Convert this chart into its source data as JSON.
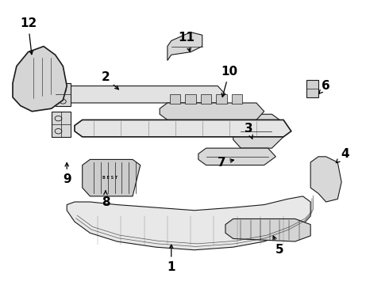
{
  "background_color": "#ffffff",
  "line_color": "#1a1a1a",
  "label_color": "#000000",
  "label_fontsize": 11,
  "label_fontweight": "bold",
  "figsize": [
    4.9,
    3.6
  ],
  "dpi": 100,
  "label_positions": {
    "1": [
      0.44,
      0.06,
      0.44,
      0.15
    ],
    "2": [
      0.27,
      0.73,
      0.31,
      0.68
    ],
    "3": [
      0.64,
      0.55,
      0.65,
      0.51
    ],
    "4": [
      0.89,
      0.46,
      0.86,
      0.42
    ],
    "5": [
      0.72,
      0.12,
      0.7,
      0.18
    ],
    "6": [
      0.84,
      0.7,
      0.82,
      0.67
    ],
    "7": [
      0.57,
      0.43,
      0.61,
      0.44
    ],
    "8": [
      0.27,
      0.29,
      0.27,
      0.34
    ],
    "9": [
      0.17,
      0.37,
      0.17,
      0.44
    ],
    "10": [
      0.59,
      0.75,
      0.57,
      0.65
    ],
    "11": [
      0.48,
      0.87,
      0.49,
      0.81
    ],
    "12": [
      0.07,
      0.92,
      0.08,
      0.8
    ]
  }
}
